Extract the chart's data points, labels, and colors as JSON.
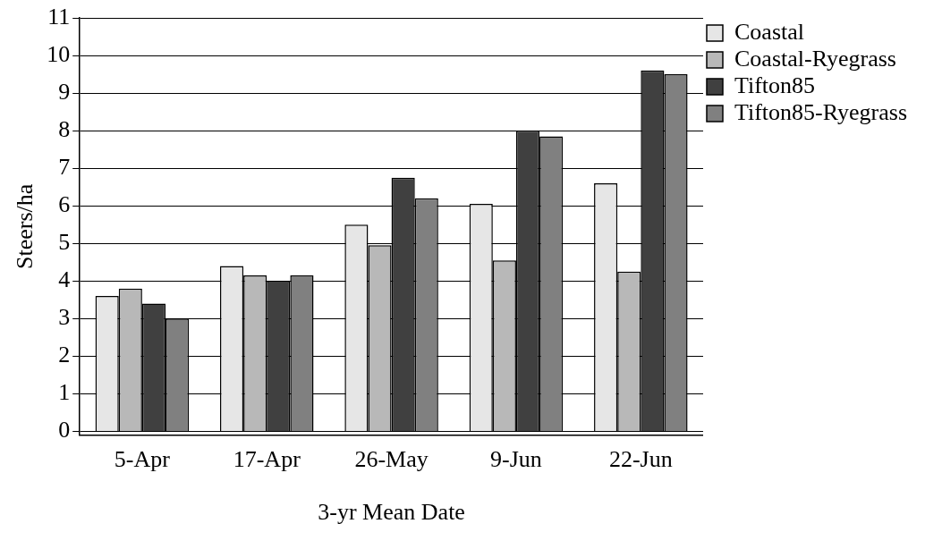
{
  "chart_data": {
    "type": "bar",
    "xlabel": "3-yr Mean Date",
    "ylabel": "Steers/ha",
    "categories": [
      "5-Apr",
      "17-Apr",
      "26-May",
      "9-Jun",
      "22-Jun"
    ],
    "series": [
      {
        "name": "Coastal",
        "color": "#e6e6e6",
        "values": [
          3.6,
          4.4,
          5.5,
          6.05,
          6.6
        ]
      },
      {
        "name": "Coastal-Ryegrass",
        "color": "#b8b8b8",
        "values": [
          3.8,
          4.15,
          4.95,
          4.55,
          4.25
        ]
      },
      {
        "name": "Tifton85",
        "color": "#404040",
        "values": [
          3.4,
          4.0,
          6.75,
          8.0,
          9.6
        ]
      },
      {
        "name": "Tifton85-Ryegrass",
        "color": "#808080",
        "values": [
          3.0,
          4.15,
          6.2,
          7.85,
          9.5
        ]
      }
    ],
    "ylim": [
      -0.1,
      11
    ],
    "yticks": [
      0,
      1,
      2,
      3,
      4,
      5,
      6,
      7,
      8,
      9,
      10,
      11
    ],
    "grid": "y",
    "legend": "top right"
  }
}
